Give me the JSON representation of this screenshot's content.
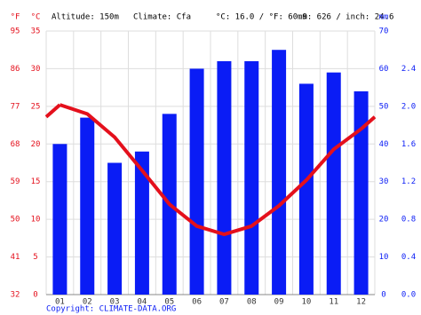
{
  "chart_data": {
    "type": "climate",
    "annotations": [
      "Altitude: 150m",
      "Climate: Cfa",
      "°C: 16.0 / °F: 60.9",
      "mm: 626 / inch: 24.6"
    ],
    "y_unit_f": "°F",
    "y_unit": "°C",
    "y2_unit": "mm",
    "categories": [
      "01",
      "02",
      "03",
      "04",
      "05",
      "06",
      "07",
      "08",
      "09",
      "10",
      "11",
      "12"
    ],
    "series": [
      {
        "name": "Precipitation",
        "type": "bar",
        "axis": "y2",
        "color": "#0a1cf5",
        "values": [
          40,
          47,
          35,
          38,
          48,
          60,
          62,
          62,
          65,
          56,
          59,
          54
        ]
      },
      {
        "name": "Temperature",
        "type": "line",
        "color": "#e4101c",
        "values": [
          25.2,
          24.0,
          20.9,
          16.5,
          12.0,
          9.1,
          8.0,
          9.1,
          11.8,
          15.2,
          19.3,
          22.0
        ]
      }
    ],
    "ylim": [
      0,
      35
    ],
    "yticks": [
      0,
      5,
      10,
      15,
      20,
      25,
      30,
      35
    ],
    "y_f_ticks": [
      {
        "value": 0,
        "label": "32"
      },
      {
        "value": 5,
        "label": "41"
      },
      {
        "value": 10,
        "label": "50"
      },
      {
        "value": 15,
        "label": "59"
      },
      {
        "value": 20,
        "label": "68"
      },
      {
        "value": 25,
        "label": "77"
      },
      {
        "value": 30,
        "label": "86"
      },
      {
        "value": 35,
        "label": "95"
      }
    ],
    "y2lim": [
      0,
      70
    ],
    "y2ticks": [
      0,
      10,
      20,
      30,
      40,
      50,
      60,
      70
    ],
    "y2_inch_ticks": [
      {
        "value": 0,
        "label": "0.0"
      },
      {
        "value": 10,
        "label": "0.4"
      },
      {
        "value": 20,
        "label": "0.8"
      },
      {
        "value": 30,
        "label": "1.2"
      },
      {
        "value": 40,
        "label": "1.6"
      },
      {
        "value": 50,
        "label": "2.0"
      },
      {
        "value": 60,
        "label": "2.4"
      }
    ],
    "grid": true,
    "copyright": "Copyright: CLIMATE-DATA.ORG"
  }
}
